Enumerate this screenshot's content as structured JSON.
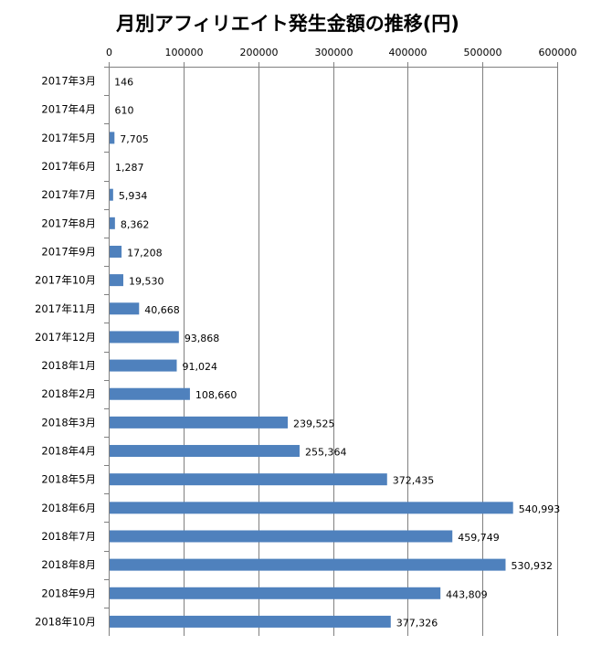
{
  "chart_data": {
    "type": "bar",
    "orientation": "horizontal",
    "title": "月別アフィリエイト発生金額の推移(円)",
    "xlim": [
      0,
      600000
    ],
    "x_ticks": [
      "0",
      "100000",
      "200000",
      "300000",
      "400000",
      "500000",
      "600000"
    ],
    "x_axis_position": "top",
    "grid": true,
    "bar_color": "#4f81bd",
    "categories": [
      "2017年3月",
      "2017年4月",
      "2017年5月",
      "2017年6月",
      "2017年7月",
      "2017年8月",
      "2017年9月",
      "2017年10月",
      "2017年11月",
      "2017年12月",
      "2018年1月",
      "2018年2月",
      "2018年3月",
      "2018年4月",
      "2018年5月",
      "2018年6月",
      "2018年7月",
      "2018年8月",
      "2018年9月",
      "2018年10月"
    ],
    "values": [
      146,
      610,
      7705,
      1287,
      5934,
      8362,
      17208,
      19530,
      40668,
      93868,
      91024,
      108660,
      239525,
      255364,
      372435,
      540993,
      459749,
      530932,
      443809,
      377326
    ],
    "value_labels": [
      "146",
      "610",
      "7,705",
      "1,287",
      "5,934",
      "8,362",
      "17,208",
      "19,530",
      "40,668",
      "93,868",
      "91,024",
      "108,660",
      "239,525",
      "255,364",
      "372,435",
      "540,993",
      "459,749",
      "530,932",
      "443,809",
      "377,326"
    ]
  }
}
